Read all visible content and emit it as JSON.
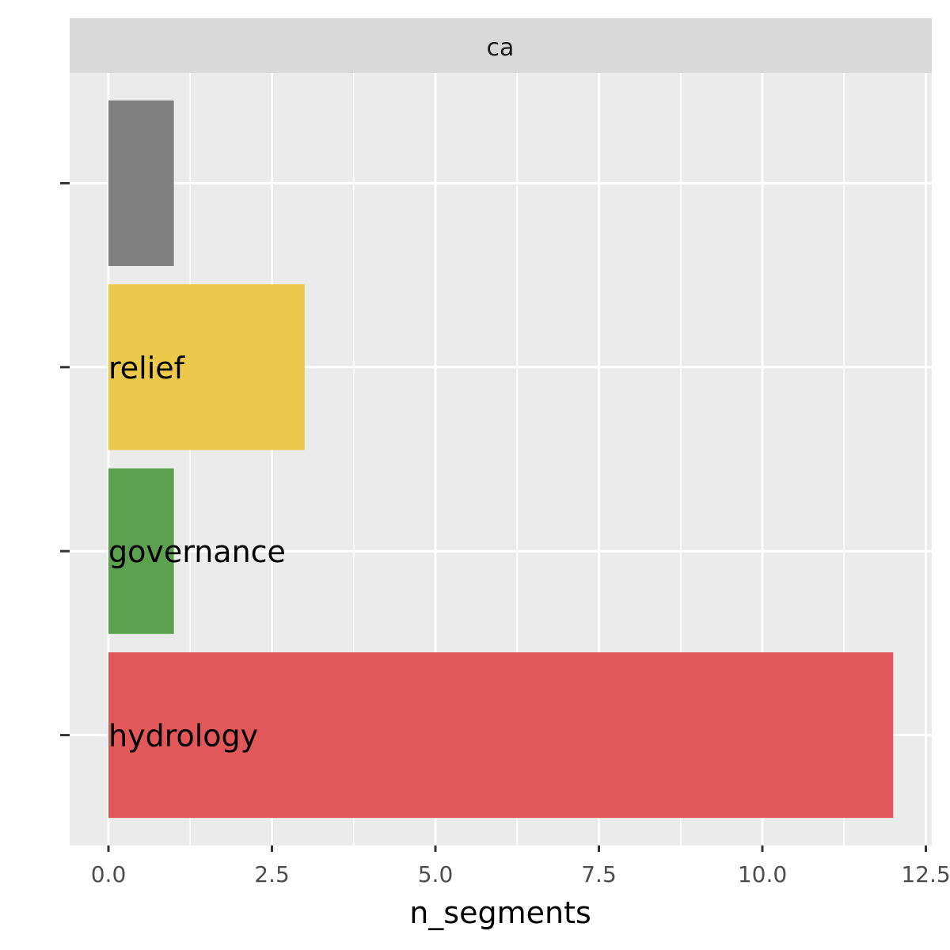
{
  "chart_data": {
    "type": "bar",
    "orientation": "horizontal",
    "facet": "ca",
    "xlabel": "n_segments",
    "ylabel": "",
    "xlim": [
      -0.58,
      12.6
    ],
    "x_ticks": [
      "0.0",
      "2.5",
      "5.0",
      "7.5",
      "10.0",
      "12.5"
    ],
    "x_tick_values": [
      0,
      2.5,
      5,
      7.5,
      10,
      12.5
    ],
    "grid": true,
    "bars": [
      {
        "label": "",
        "value": 1,
        "color": "#808080"
      },
      {
        "label": "relief",
        "value": 3,
        "color": "#ECC94B"
      },
      {
        "label": "governance",
        "value": 1,
        "color": "#5BA150"
      },
      {
        "label": "hydrology",
        "value": 12,
        "color": "#E1575A"
      }
    ]
  }
}
